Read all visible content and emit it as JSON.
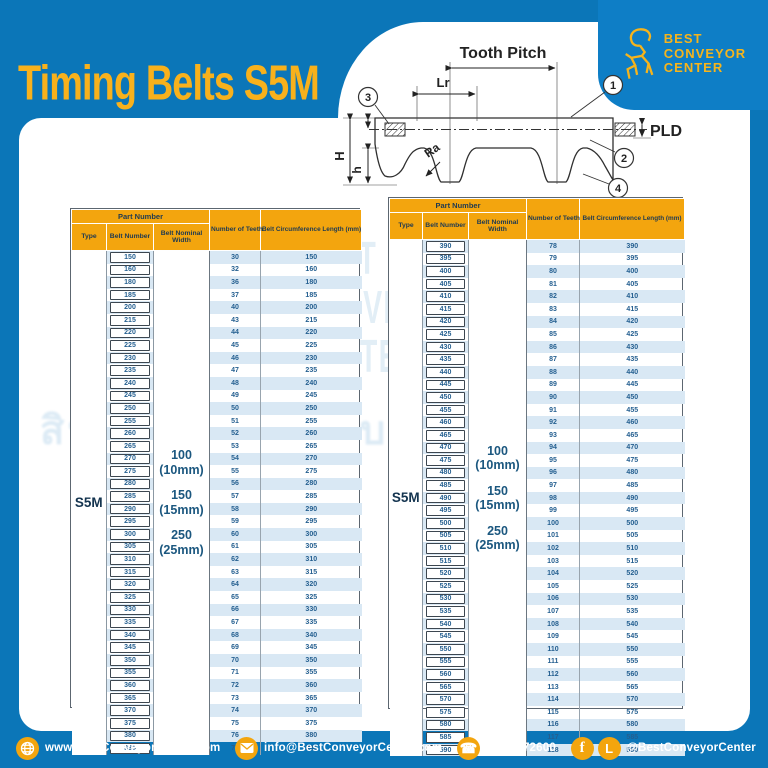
{
  "page": {
    "title": "Timing Belts S5M"
  },
  "logo": {
    "line1": "BEST",
    "line2": "CONVEYOR",
    "line3": "CENTER"
  },
  "diagram": {
    "tooth_pitch": "Tooth Pitch",
    "lr": "Lr",
    "height_total": "H",
    "height_tooth": "h",
    "ra": "Ra",
    "pld": "PLD",
    "callouts": [
      "1",
      "2",
      "3",
      "4"
    ]
  },
  "tables": {
    "columns": {
      "part_number": "Part Number",
      "type": "Type",
      "belt_number": "Belt Number",
      "belt_nominal_width": "Belt Nominal Width",
      "teeth": "Number of Teeth",
      "circumference": "Belt Circumference Length (mm)"
    },
    "left": {
      "type": "S5M",
      "widths": [
        {
          "size": "100",
          "label": "(10mm)"
        },
        {
          "size": "150",
          "label": "(15mm)"
        },
        {
          "size": "250",
          "label": "(25mm)"
        }
      ],
      "rows": [
        [
          "150",
          "30",
          "150"
        ],
        [
          "160",
          "32",
          "160"
        ],
        [
          "180",
          "36",
          "180"
        ],
        [
          "185",
          "37",
          "185"
        ],
        [
          "200",
          "40",
          "200"
        ],
        [
          "215",
          "43",
          "215"
        ],
        [
          "220",
          "44",
          "220"
        ],
        [
          "225",
          "45",
          "225"
        ],
        [
          "230",
          "46",
          "230"
        ],
        [
          "235",
          "47",
          "235"
        ],
        [
          "240",
          "48",
          "240"
        ],
        [
          "245",
          "49",
          "245"
        ],
        [
          "250",
          "50",
          "250"
        ],
        [
          "255",
          "51",
          "255"
        ],
        [
          "260",
          "52",
          "260"
        ],
        [
          "265",
          "53",
          "265"
        ],
        [
          "270",
          "54",
          "270"
        ],
        [
          "275",
          "55",
          "275"
        ],
        [
          "280",
          "56",
          "280"
        ],
        [
          "285",
          "57",
          "285"
        ],
        [
          "290",
          "58",
          "290"
        ],
        [
          "295",
          "59",
          "295"
        ],
        [
          "300",
          "60",
          "300"
        ],
        [
          "305",
          "61",
          "305"
        ],
        [
          "310",
          "62",
          "310"
        ],
        [
          "315",
          "63",
          "315"
        ],
        [
          "320",
          "64",
          "320"
        ],
        [
          "325",
          "65",
          "325"
        ],
        [
          "330",
          "66",
          "330"
        ],
        [
          "335",
          "67",
          "335"
        ],
        [
          "340",
          "68",
          "340"
        ],
        [
          "345",
          "69",
          "345"
        ],
        [
          "350",
          "70",
          "350"
        ],
        [
          "355",
          "71",
          "355"
        ],
        [
          "360",
          "72",
          "360"
        ],
        [
          "365",
          "73",
          "365"
        ],
        [
          "370",
          "74",
          "370"
        ],
        [
          "375",
          "75",
          "375"
        ],
        [
          "380",
          "76",
          "380"
        ],
        [
          "385",
          "77",
          "385"
        ]
      ]
    },
    "right": {
      "type": "S5M",
      "widths": [
        {
          "size": "100",
          "label": "(10mm)"
        },
        {
          "size": "150",
          "label": "(15mm)"
        },
        {
          "size": "250",
          "label": "(25mm)"
        }
      ],
      "rows": [
        [
          "390",
          "78",
          "390"
        ],
        [
          "395",
          "79",
          "395"
        ],
        [
          "400",
          "80",
          "400"
        ],
        [
          "405",
          "81",
          "405"
        ],
        [
          "410",
          "82",
          "410"
        ],
        [
          "415",
          "83",
          "415"
        ],
        [
          "420",
          "84",
          "420"
        ],
        [
          "425",
          "85",
          "425"
        ],
        [
          "430",
          "86",
          "430"
        ],
        [
          "435",
          "87",
          "435"
        ],
        [
          "440",
          "88",
          "440"
        ],
        [
          "445",
          "89",
          "445"
        ],
        [
          "450",
          "90",
          "450"
        ],
        [
          "455",
          "91",
          "455"
        ],
        [
          "460",
          "92",
          "460"
        ],
        [
          "465",
          "93",
          "465"
        ],
        [
          "470",
          "94",
          "470"
        ],
        [
          "475",
          "95",
          "475"
        ],
        [
          "480",
          "96",
          "480"
        ],
        [
          "485",
          "97",
          "485"
        ],
        [
          "490",
          "98",
          "490"
        ],
        [
          "495",
          "99",
          "495"
        ],
        [
          "500",
          "100",
          "500"
        ],
        [
          "505",
          "101",
          "505"
        ],
        [
          "510",
          "102",
          "510"
        ],
        [
          "515",
          "103",
          "515"
        ],
        [
          "520",
          "104",
          "520"
        ],
        [
          "525",
          "105",
          "525"
        ],
        [
          "530",
          "106",
          "530"
        ],
        [
          "535",
          "107",
          "535"
        ],
        [
          "540",
          "108",
          "540"
        ],
        [
          "545",
          "109",
          "545"
        ],
        [
          "550",
          "110",
          "550"
        ],
        [
          "555",
          "111",
          "555"
        ],
        [
          "560",
          "112",
          "560"
        ],
        [
          "565",
          "113",
          "565"
        ],
        [
          "570",
          "114",
          "570"
        ],
        [
          "575",
          "115",
          "575"
        ],
        [
          "580",
          "116",
          "580"
        ],
        [
          "585",
          "117",
          "585"
        ],
        [
          "590",
          "118",
          "590"
        ]
      ]
    }
  },
  "watermark": {
    "brand": [
      "BEST",
      "CONVEYOR",
      "CENTER"
    ],
    "thai": "สินค้าโรงงานแบบครบวงจร"
  },
  "footer": {
    "website": "www.BestConveyorCenter.com",
    "email": "info@BestConveyorCenter.com",
    "phone": "086-3272600",
    "social": "@BestConveyorCenter"
  },
  "colors": {
    "background_blue": "#0b76b8",
    "accent_yellow": "#f3a50e",
    "title_yellow": "#f8b11c",
    "row_stripe": "#d9e8f4",
    "cell_text": "#245f90",
    "header_text": "#1e3a52"
  }
}
